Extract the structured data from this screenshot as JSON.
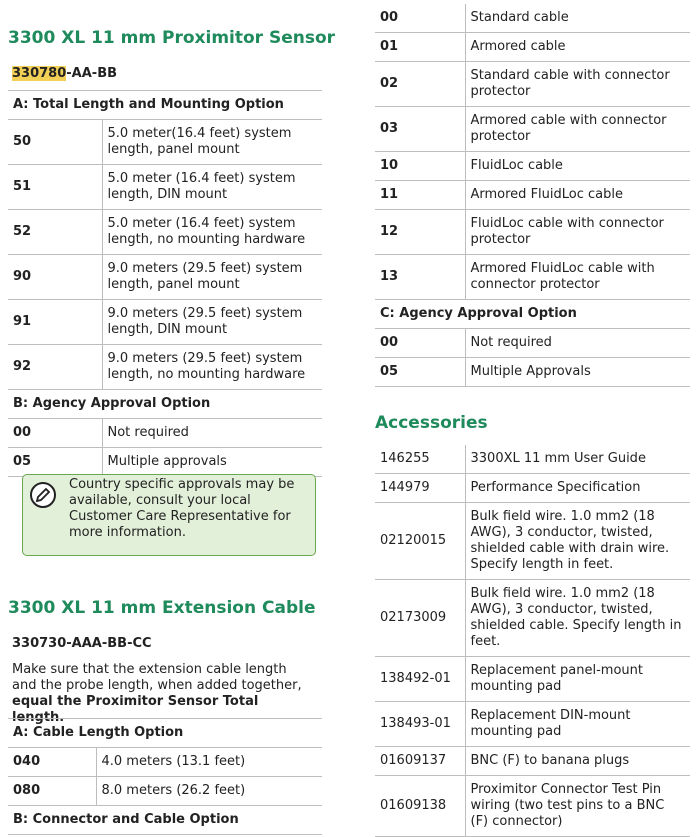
{
  "left": {
    "sensor": {
      "title": "3300 XL 11 mm Proximitor Sensor",
      "part_highlight": "330780",
      "part_rest": "-AA-BB",
      "groups": [
        {
          "heading": "A: Total Length and Mounting Option",
          "rows": [
            [
              "50",
              "5.0 meter(16.4 feet) system length, panel mount"
            ],
            [
              "51",
              "5.0 meter (16.4 feet) system length, DIN mount"
            ],
            [
              "52",
              "5.0 meter (16.4 feet) system length, no mounting hardware"
            ],
            [
              "90",
              "9.0 meters (29.5 feet) system length, panel mount"
            ],
            [
              "91",
              "9.0 meters (29.5 feet) system length, DIN mount"
            ],
            [
              "92",
              "9.0 meters (29.5 feet) system length, no mounting hardware"
            ]
          ]
        },
        {
          "heading": "B: Agency Approval Option",
          "rows": [
            [
              "00",
              "Not required"
            ],
            [
              "05",
              "Multiple approvals"
            ]
          ]
        }
      ],
      "note": "Country specific approvals may be available, consult your local Customer Care Representative for more information."
    },
    "extension": {
      "title": "3300 XL 11 mm Extension Cable",
      "part": "330730-AAA-BB-CC",
      "intro": "Make sure that the extension cable length and the probe length, when added together,",
      "intro_bold": "equal the Proximitor Sensor Total length.",
      "groups": [
        {
          "heading": "A: Cable Length Option",
          "rows": [
            [
              "040",
              "4.0 meters (13.1 feet)"
            ],
            [
              "080",
              "8.0 meters (26.2 feet)"
            ]
          ]
        }
      ],
      "heading_b": "B: Connector and Cable Option"
    }
  },
  "right": {
    "cable_rows": [
      [
        "00",
        "Standard cable"
      ],
      [
        "01",
        "Armored cable"
      ],
      [
        "02",
        "Standard cable with connector protector"
      ],
      [
        "03",
        "Armored cable with connector protector"
      ],
      [
        "10",
        "FluidLoc cable"
      ],
      [
        "11",
        "Armored FluidLoc cable"
      ],
      [
        "12",
        "FluidLoc cable with connector protector"
      ],
      [
        "13",
        "Armored FluidLoc cable with connector protector"
      ]
    ],
    "groups": [
      {
        "heading": "C: Agency Approval Option",
        "rows": [
          [
            "00",
            "Not required"
          ],
          [
            "05",
            "Multiple Approvals"
          ]
        ]
      }
    ],
    "accessories": {
      "title": "Accessories",
      "rows": [
        [
          "146255",
          "3300XL 11 mm User Guide"
        ],
        [
          "144979",
          "Performance Specification"
        ],
        [
          "02120015",
          "Bulk field wire. 1.0 mm2 (18 AWG), 3 conductor, twisted, shielded cable with drain wire. Specify length in feet."
        ],
        [
          "02173009",
          "Bulk field wire. 1.0 mm2 (18 AWG), 3 conductor, twisted, shielded cable. Specify length in feet."
        ],
        [
          "138492-01",
          "Replacement panel-mount mounting pad"
        ],
        [
          "138493-01",
          "Replacement DIN-mount mounting pad"
        ],
        [
          "01609137",
          "BNC (F) to banana plugs"
        ],
        [
          "01609138",
          "Proximitor Connector Test Pin wiring (two test pins to a BNC (F) connector)"
        ]
      ]
    }
  }
}
